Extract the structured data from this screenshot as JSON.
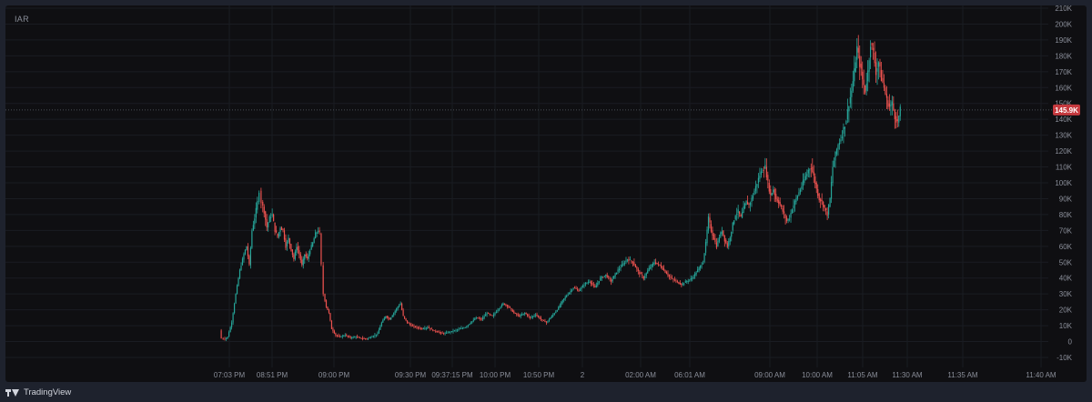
{
  "symbol": "IAR",
  "brand": {
    "name": "TradingView",
    "icon": "tradingview-logo-icon"
  },
  "colors": {
    "up": "#26a69a",
    "down": "#ef5350",
    "price_label": "#c53a3f"
  },
  "chart_data": {
    "type": "line",
    "title": "",
    "xlabel": "",
    "ylabel": "",
    "ylim": [
      -10000,
      210000
    ],
    "y_ticks": [
      {
        "v": 210000,
        "label": "210K"
      },
      {
        "v": 200000,
        "label": "200K"
      },
      {
        "v": 190000,
        "label": "190K"
      },
      {
        "v": 180000,
        "label": "180K"
      },
      {
        "v": 170000,
        "label": "170K"
      },
      {
        "v": 160000,
        "label": "160K"
      },
      {
        "v": 150000,
        "label": "150K"
      },
      {
        "v": 140000,
        "label": "140K"
      },
      {
        "v": 130000,
        "label": "130K"
      },
      {
        "v": 120000,
        "label": "120K"
      },
      {
        "v": 110000,
        "label": "110K"
      },
      {
        "v": 100000,
        "label": "100K"
      },
      {
        "v": 90000,
        "label": "90K"
      },
      {
        "v": 80000,
        "label": "80K"
      },
      {
        "v": 70000,
        "label": "70K"
      },
      {
        "v": 60000,
        "label": "60K"
      },
      {
        "v": 50000,
        "label": "50K"
      },
      {
        "v": 40000,
        "label": "40K"
      },
      {
        "v": 30000,
        "label": "30K"
      },
      {
        "v": 20000,
        "label": "20K"
      },
      {
        "v": 10000,
        "label": "10K"
      },
      {
        "v": 0,
        "label": "0"
      },
      {
        "v": -10000,
        "label": "-10K"
      }
    ],
    "x_ticks": [
      "07:03 PM",
      "08:51 PM",
      "09:00 PM",
      "09:30 PM",
      "09:37:15 PM",
      "10:00 PM",
      "10:50 PM",
      "2",
      "02:00 AM",
      "06:01 AM",
      "09:00 AM",
      "10:00 AM",
      "11:05 AM",
      "11:30 AM",
      "11:35 AM",
      "11:40 AM"
    ],
    "current_price": {
      "value": 145900,
      "label": "145.9K"
    },
    "series": [
      {
        "values": [
          [
            0,
            7000
          ],
          [
            1.5,
            2000
          ],
          [
            4,
            1500
          ],
          [
            6,
            3000
          ],
          [
            9,
            12000
          ],
          [
            12,
            30000
          ],
          [
            15,
            45000
          ],
          [
            18,
            55000
          ],
          [
            20,
            60000
          ],
          [
            22,
            48000
          ],
          [
            24,
            70000
          ],
          [
            26,
            78000
          ],
          [
            28,
            88000
          ],
          [
            29.5,
            95000
          ],
          [
            31,
            88000
          ],
          [
            33,
            82000
          ],
          [
            35,
            72000
          ],
          [
            37,
            78000
          ],
          [
            39,
            80000
          ],
          [
            41,
            70000
          ],
          [
            43,
            66000
          ],
          [
            45,
            72000
          ],
          [
            47,
            70000
          ],
          [
            49,
            60000
          ],
          [
            51,
            65000
          ],
          [
            53,
            58000
          ],
          [
            55,
            52000
          ],
          [
            57,
            60000
          ],
          [
            59,
            55000
          ],
          [
            61,
            48000
          ],
          [
            63,
            55000
          ],
          [
            65,
            52000
          ],
          [
            67,
            58000
          ],
          [
            69,
            62000
          ],
          [
            71,
            68000
          ],
          [
            73,
            70000
          ],
          [
            74,
            68000
          ],
          [
            75.5,
            48000
          ],
          [
            77,
            30000
          ],
          [
            79,
            22000
          ],
          [
            81,
            18000
          ],
          [
            83,
            8000
          ],
          [
            86,
            4000
          ],
          [
            89,
            3000
          ],
          [
            93,
            4000
          ],
          [
            97,
            2500
          ],
          [
            101,
            3000
          ],
          [
            105,
            2000
          ],
          [
            109,
            1800
          ],
          [
            113,
            3000
          ],
          [
            117,
            5000
          ],
          [
            120,
            12000
          ],
          [
            123,
            16000
          ],
          [
            126,
            14000
          ],
          [
            129,
            18000
          ],
          [
            132,
            22000
          ],
          [
            134,
            24000
          ],
          [
            136,
            16000
          ],
          [
            139,
            12000
          ],
          [
            142,
            10000
          ],
          [
            146,
            9000
          ],
          [
            150,
            8000
          ],
          [
            154,
            9000
          ],
          [
            158,
            7000
          ],
          [
            162,
            6000
          ],
          [
            166,
            5000
          ],
          [
            170,
            6000
          ],
          [
            174,
            7000
          ],
          [
            178,
            8000
          ],
          [
            182,
            9000
          ],
          [
            186,
            12000
          ],
          [
            190,
            15000
          ],
          [
            194,
            14000
          ],
          [
            198,
            18000
          ],
          [
            202,
            16000
          ],
          [
            206,
            20000
          ],
          [
            210,
            24000
          ],
          [
            214,
            22000
          ],
          [
            218,
            18000
          ],
          [
            222,
            16000
          ],
          [
            226,
            18000
          ],
          [
            230,
            15000
          ],
          [
            234,
            17000
          ],
          [
            238,
            14000
          ],
          [
            242,
            12000
          ],
          [
            246,
            16000
          ],
          [
            250,
            20000
          ],
          [
            254,
            26000
          ],
          [
            258,
            30000
          ],
          [
            262,
            34000
          ],
          [
            266,
            32000
          ],
          [
            270,
            36000
          ],
          [
            274,
            38000
          ],
          [
            278,
            34000
          ],
          [
            282,
            40000
          ],
          [
            286,
            42000
          ],
          [
            290,
            38000
          ],
          [
            294,
            44000
          ],
          [
            298,
            48000
          ],
          [
            302,
            52000
          ],
          [
            306,
            50000
          ],
          [
            310,
            44000
          ],
          [
            314,
            40000
          ],
          [
            318,
            46000
          ],
          [
            322,
            50000
          ],
          [
            326,
            48000
          ],
          [
            330,
            44000
          ],
          [
            334,
            40000
          ],
          [
            338,
            38000
          ],
          [
            342,
            36000
          ],
          [
            346,
            38000
          ],
          [
            350,
            40000
          ],
          [
            354,
            45000
          ],
          [
            358,
            50000
          ],
          [
            360,
            62000
          ],
          [
            362,
            78000
          ],
          [
            364,
            70000
          ],
          [
            366,
            65000
          ],
          [
            368,
            60000
          ],
          [
            370,
            66000
          ],
          [
            372,
            70000
          ],
          [
            374,
            64000
          ],
          [
            376,
            60000
          ],
          [
            378,
            66000
          ],
          [
            380,
            74000
          ],
          [
            382,
            80000
          ],
          [
            384,
            82000
          ],
          [
            386,
            78000
          ],
          [
            388,
            84000
          ],
          [
            390,
            88000
          ],
          [
            392,
            86000
          ],
          [
            394,
            90000
          ],
          [
            396,
            95000
          ],
          [
            398,
            100000
          ],
          [
            400,
            105000
          ],
          [
            402,
            108000
          ],
          [
            404,
            110000
          ],
          [
            406,
            100000
          ],
          [
            408,
            92000
          ],
          [
            410,
            96000
          ],
          [
            412,
            90000
          ],
          [
            414,
            88000
          ],
          [
            416,
            84000
          ],
          [
            418,
            80000
          ],
          [
            420,
            76000
          ],
          [
            422,
            78000
          ],
          [
            424,
            84000
          ],
          [
            426,
            88000
          ],
          [
            428,
            92000
          ],
          [
            430,
            96000
          ],
          [
            432,
            100000
          ],
          [
            434,
            104000
          ],
          [
            436,
            108000
          ],
          [
            438,
            110000
          ],
          [
            440,
            104000
          ],
          [
            442,
            96000
          ],
          [
            444,
            90000
          ],
          [
            446,
            88000
          ],
          [
            448,
            84000
          ],
          [
            450,
            80000
          ],
          [
            452,
            90000
          ],
          [
            454,
            110000
          ],
          [
            456,
            118000
          ],
          [
            458,
            124000
          ],
          [
            460,
            128000
          ],
          [
            462,
            134000
          ],
          [
            464,
            140000
          ],
          [
            466,
            150000
          ],
          [
            468,
            158000
          ],
          [
            470,
            170000
          ],
          [
            472,
            185000
          ],
          [
            474,
            175000
          ],
          [
            476,
            165000
          ],
          [
            478,
            158000
          ],
          [
            480,
            170000
          ],
          [
            482,
            188000
          ],
          [
            484,
            182000
          ],
          [
            486,
            170000
          ],
          [
            488,
            176000
          ],
          [
            490,
            166000
          ],
          [
            492,
            160000
          ],
          [
            494,
            152000
          ],
          [
            496,
            148000
          ],
          [
            498,
            150000
          ],
          [
            500,
            142000
          ],
          [
            502,
            138000
          ],
          [
            504,
            145900
          ]
        ]
      }
    ]
  }
}
